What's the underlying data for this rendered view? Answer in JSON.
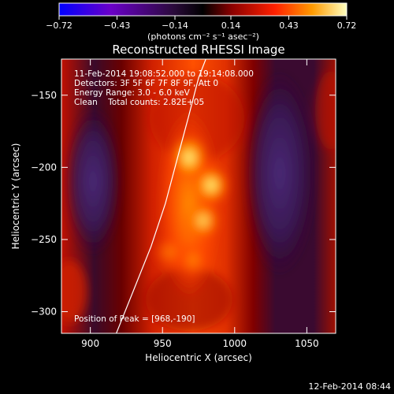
{
  "colorbar": {
    "min": -0.72,
    "max": 0.72,
    "tick_labels": [
      "-0.72",
      "-0.43",
      "-0.14",
      "0.14",
      "0.43",
      "0.72"
    ],
    "units_label": "(photons cm⁻² s⁻¹ asec⁻²)",
    "colors": [
      "#0000ff",
      "#6a00c8",
      "#2a0a3a",
      "#000000",
      "#8a0000",
      "#ff2000",
      "#ff9a00",
      "#ffffc0"
    ]
  },
  "plot": {
    "title": "Reconstructed RHESSI Image",
    "info_lines": [
      "11-Feb-2014 19:08:52.000 to 19:14:08.000",
      "Detectors: 3F 5F 6F 7F 8F 9F, Att 0",
      "Energy Range: 3.0 - 6.0 keV",
      "Clean    Total counts: 2.82E+05"
    ],
    "peak_label": "Position of Peak = [968,-190]",
    "xlabel": "Heliocentric X (arcsec)",
    "ylabel": "Heliocentric Y (arcsec)",
    "xlim": [
      880,
      1070
    ],
    "ylim": [
      -315,
      -125
    ],
    "x_ticks": [
      {
        "value": 900,
        "label": "900"
      },
      {
        "value": 950,
        "label": "950"
      },
      {
        "value": 1000,
        "label": "1000"
      },
      {
        "value": 1050,
        "label": "1050"
      }
    ],
    "y_ticks": [
      {
        "value": -150,
        "label": "-150"
      },
      {
        "value": -200,
        "label": "-200"
      },
      {
        "value": -250,
        "label": "-250"
      },
      {
        "value": -300,
        "label": "-300"
      }
    ],
    "peak_position": [
      968,
      -190
    ],
    "limb_points": [
      [
        918,
        -315
      ],
      [
        930,
        -285
      ],
      [
        942,
        -255
      ],
      [
        952,
        -225
      ],
      [
        960,
        -195
      ],
      [
        968,
        -165
      ],
      [
        975,
        -138
      ],
      [
        980,
        -125
      ]
    ]
  },
  "footer": {
    "timestamp": "12-Feb-2014 08:44"
  }
}
